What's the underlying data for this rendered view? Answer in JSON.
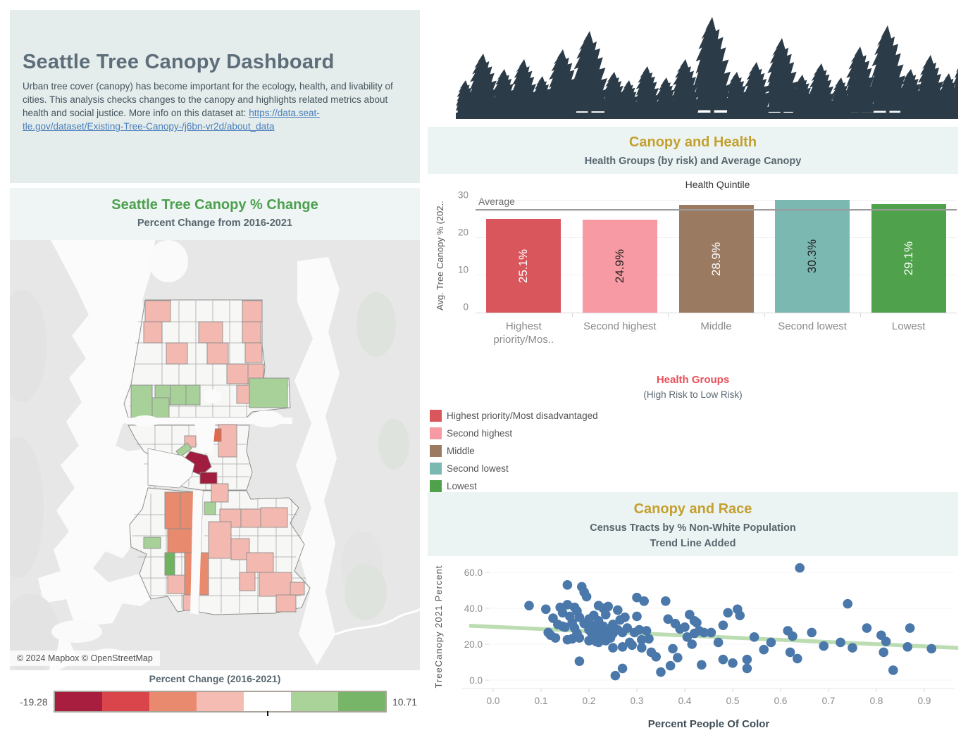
{
  "intro": {
    "title": "Seattle Tree Canopy Dashboard",
    "body": "Urban tree cover (canopy) has become important for the ecology, health, and livability of cities. This analysis checks changes to the canopy and highlights related metrics about health and social justice. More info on this dataset at: ",
    "link_line1": "https://data.seat-",
    "link_line2": "tle.gov/dataset/Existing-Tree-Canopy-/j6bn-vr2d/about_data"
  },
  "map_panel": {
    "title": "Seattle Tree Canopy % Change",
    "subtitle": "Percent Change from 2016-2021",
    "attribution": "© 2024 Mapbox © OpenStreetMap",
    "legend": {
      "title": "Percent Change (2016-2021)",
      "min": "-19.28",
      "max": "10.71",
      "colors": [
        "#a81e3f",
        "#d9454a",
        "#e98a6e",
        "#f5bcb3",
        "#ffffff",
        "#a9d399",
        "#77b668"
      ]
    }
  },
  "health_panel": {
    "title": "Canopy and Health",
    "subtitle": "Health Groups (by risk) and Average Canopy"
  },
  "health_legend": {
    "title": "Health Groups",
    "subtitle": "(High Risk to Low Risk)",
    "items": [
      {
        "label": "Highest priority/Most disadvantaged",
        "color": "#d9565c"
      },
      {
        "label": "Second highest",
        "color": "#f79aa3"
      },
      {
        "label": "Middle",
        "color": "#9b7a62"
      },
      {
        "label": "Second lowest",
        "color": "#7cb8b2"
      },
      {
        "label": "Lowest",
        "color": "#4fa24b"
      }
    ]
  },
  "race_panel": {
    "title": "Canopy and Race",
    "subtitle1": "Census Tracts by % Non-White Population",
    "subtitle2": "Trend Line Added"
  },
  "chart_data": [
    {
      "type": "bar",
      "title": "Canopy and Health",
      "axis_title": "Health Quintile",
      "ylabel": "Avg. Tree Canopy % (202..",
      "categories": [
        "Highest priority/Mos..",
        "Second highest",
        "Middle",
        "Second lowest",
        "Lowest"
      ],
      "values": [
        25.1,
        24.9,
        28.9,
        30.3,
        29.1
      ],
      "labels": [
        "25.1%",
        "24.9%",
        "28.9%",
        "30.3%",
        "29.1%"
      ],
      "colors": [
        "#d9565c",
        "#f79aa3",
        "#9b7a62",
        "#7cb8b2",
        "#4fa24b"
      ],
      "label_colors": [
        "#ffffff",
        "#222222",
        "#ffffff",
        "#222222",
        "#ffffff"
      ],
      "yticks": [
        0,
        10,
        20,
        30
      ],
      "ylim": [
        0,
        31
      ],
      "grid": true,
      "average_line": {
        "label": "Average",
        "value": 27.7
      }
    },
    {
      "type": "scatter",
      "title": "Canopy and Race",
      "xlabel": "Percent People Of Color",
      "ylabel": "TreeCanopy 2021 Percent",
      "xticks": [
        "0.0",
        "0.1",
        "0.2",
        "0.3",
        "0.4",
        "0.5",
        "0.6",
        "0.7",
        "0.8",
        "0.9"
      ],
      "yticks": [
        "0.0",
        "20.0",
        "40.0",
        "60.0"
      ],
      "xlim": [
        -0.066,
        0.965
      ],
      "ylim": [
        -5,
        67
      ],
      "point_color": "#4a78aa",
      "trend": {
        "x1": -0.05,
        "y1": 30.3,
        "x2": 0.975,
        "y2": 17.9,
        "color": "#b5d9aa"
      },
      "points": [
        [
          0.075,
          41.5
        ],
        [
          0.11,
          39.5
        ],
        [
          0.115,
          26.5
        ],
        [
          0.12,
          25
        ],
        [
          0.125,
          34.5
        ],
        [
          0.13,
          23.5
        ],
        [
          0.135,
          31
        ],
        [
          0.14,
          40.5
        ],
        [
          0.145,
          37.5
        ],
        [
          0.145,
          30
        ],
        [
          0.15,
          29.5
        ],
        [
          0.155,
          53
        ],
        [
          0.155,
          42
        ],
        [
          0.155,
          22.5
        ],
        [
          0.16,
          35.5
        ],
        [
          0.165,
          23
        ],
        [
          0.165,
          32
        ],
        [
          0.17,
          40.5
        ],
        [
          0.17,
          29
        ],
        [
          0.175,
          26
        ],
        [
          0.175,
          38.5
        ],
        [
          0.18,
          35
        ],
        [
          0.18,
          23.5
        ],
        [
          0.18,
          10.5
        ],
        [
          0.185,
          52
        ],
        [
          0.19,
          49
        ],
        [
          0.19,
          31.5
        ],
        [
          0.195,
          46.5
        ],
        [
          0.2,
          34
        ],
        [
          0.2,
          28
        ],
        [
          0.2,
          22
        ],
        [
          0.205,
          30.5
        ],
        [
          0.205,
          26.5
        ],
        [
          0.21,
          36
        ],
        [
          0.21,
          25
        ],
        [
          0.215,
          29.5
        ],
        [
          0.215,
          21.5
        ],
        [
          0.22,
          41.5
        ],
        [
          0.22,
          33
        ],
        [
          0.22,
          21
        ],
        [
          0.225,
          26.5
        ],
        [
          0.225,
          24
        ],
        [
          0.23,
          40
        ],
        [
          0.23,
          30
        ],
        [
          0.235,
          36.5
        ],
        [
          0.235,
          25.5
        ],
        [
          0.235,
          22
        ],
        [
          0.24,
          41
        ],
        [
          0.24,
          28.5
        ],
        [
          0.245,
          23.5
        ],
        [
          0.25,
          31
        ],
        [
          0.25,
          26
        ],
        [
          0.25,
          18
        ],
        [
          0.255,
          2.5
        ],
        [
          0.26,
          39
        ],
        [
          0.26,
          28
        ],
        [
          0.265,
          33.5
        ],
        [
          0.27,
          26.5
        ],
        [
          0.27,
          18.5
        ],
        [
          0.27,
          6.5
        ],
        [
          0.275,
          35
        ],
        [
          0.28,
          29
        ],
        [
          0.285,
          21
        ],
        [
          0.29,
          19.5
        ],
        [
          0.295,
          26.5
        ],
        [
          0.3,
          46
        ],
        [
          0.3,
          35.5
        ],
        [
          0.305,
          28
        ],
        [
          0.31,
          22.5
        ],
        [
          0.31,
          18
        ],
        [
          0.315,
          44
        ],
        [
          0.32,
          27.5
        ],
        [
          0.325,
          23
        ],
        [
          0.33,
          15.5
        ],
        [
          0.34,
          13
        ],
        [
          0.35,
          4.5
        ],
        [
          0.36,
          44
        ],
        [
          0.365,
          34
        ],
        [
          0.37,
          8
        ],
        [
          0.375,
          17.5
        ],
        [
          0.38,
          31.5
        ],
        [
          0.385,
          12.5
        ],
        [
          0.39,
          28.5
        ],
        [
          0.4,
          29.5
        ],
        [
          0.405,
          24
        ],
        [
          0.41,
          36.5
        ],
        [
          0.415,
          20
        ],
        [
          0.42,
          33
        ],
        [
          0.42,
          26
        ],
        [
          0.425,
          32
        ],
        [
          0.43,
          27.5
        ],
        [
          0.435,
          8.5
        ],
        [
          0.44,
          26.5
        ],
        [
          0.455,
          26.5
        ],
        [
          0.47,
          21
        ],
        [
          0.48,
          30.5
        ],
        [
          0.48,
          11.5
        ],
        [
          0.49,
          37.5
        ],
        [
          0.5,
          9.5
        ],
        [
          0.51,
          39.5
        ],
        [
          0.515,
          36
        ],
        [
          0.53,
          11.5
        ],
        [
          0.53,
          6.5
        ],
        [
          0.545,
          24
        ],
        [
          0.565,
          17
        ],
        [
          0.58,
          21
        ],
        [
          0.615,
          27.5
        ],
        [
          0.62,
          15.5
        ],
        [
          0.625,
          24.5
        ],
        [
          0.635,
          12
        ],
        [
          0.64,
          62.5
        ],
        [
          0.665,
          26.5
        ],
        [
          0.69,
          19
        ],
        [
          0.725,
          21
        ],
        [
          0.74,
          42.5
        ],
        [
          0.75,
          18
        ],
        [
          0.78,
          29
        ],
        [
          0.81,
          25
        ],
        [
          0.815,
          15.5
        ],
        [
          0.82,
          21.5
        ],
        [
          0.835,
          5.5
        ],
        [
          0.865,
          18.5
        ],
        [
          0.87,
          29
        ],
        [
          0.915,
          17.5
        ]
      ]
    }
  ]
}
